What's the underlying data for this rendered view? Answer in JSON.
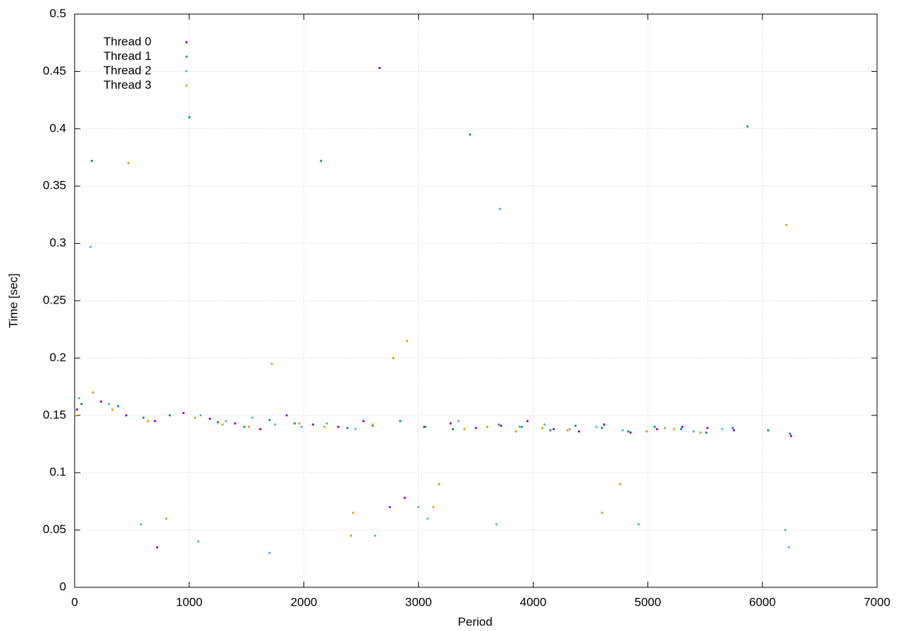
{
  "chart_data": {
    "type": "scatter",
    "x_label": "Period",
    "y_label": "Time [sec]",
    "xlim": [
      0,
      7000
    ],
    "xticks": [
      0,
      1000,
      2000,
      3000,
      4000,
      5000,
      6000,
      7000
    ],
    "ylim": [
      0,
      0.5
    ],
    "yticks": [
      0,
      0.05,
      0.1,
      0.15,
      0.2,
      0.25,
      0.3,
      0.35,
      0.4,
      0.45,
      0.5
    ],
    "grid": true,
    "legend": "top-left",
    "series": [
      {
        "name": "Thread 0",
        "color": "#9400d3",
        "x": [
          20,
          230,
          450,
          700,
          720,
          950,
          1180,
          1400,
          1620,
          1850,
          2080,
          2300,
          2520,
          2660,
          2750,
          2880,
          3050,
          3280,
          3500,
          3720,
          3950,
          4180,
          4400,
          4620,
          4850,
          5080,
          5300,
          5520,
          5750,
          6250
        ],
        "values": [
          0.155,
          0.162,
          0.15,
          0.145,
          0.035,
          0.152,
          0.147,
          0.143,
          0.138,
          0.15,
          0.142,
          0.14,
          0.145,
          0.453,
          0.07,
          0.078,
          0.14,
          0.143,
          0.139,
          0.141,
          0.145,
          0.138,
          0.136,
          0.142,
          0.135,
          0.138,
          0.14,
          0.139,
          0.137,
          0.132
        ]
      },
      {
        "name": "Thread 1",
        "color": "#009e73",
        "x": [
          60,
          150,
          380,
          600,
          830,
          1000,
          1250,
          1480,
          1700,
          1920,
          2150,
          2380,
          2600,
          2840,
          3060,
          3300,
          3450,
          3700,
          3900,
          4150,
          4370,
          4600,
          4830,
          5060,
          5290,
          5510,
          5740,
          5870,
          6050,
          6240
        ],
        "values": [
          0.16,
          0.372,
          0.158,
          0.148,
          0.15,
          0.41,
          0.144,
          0.14,
          0.146,
          0.143,
          0.372,
          0.139,
          0.141,
          0.145,
          0.14,
          0.138,
          0.395,
          0.142,
          0.14,
          0.137,
          0.141,
          0.139,
          0.136,
          0.14,
          0.138,
          0.135,
          0.139,
          0.402,
          0.137,
          0.134
        ]
      },
      {
        "name": "Thread 2",
        "color": "#56b4e9",
        "x": [
          40,
          140,
          300,
          580,
          1080,
          1100,
          1320,
          1550,
          1700,
          1750,
          1980,
          2200,
          2450,
          2620,
          3000,
          3080,
          3350,
          3680,
          3710,
          3880,
          4100,
          4320,
          4550,
          4780,
          4920,
          5150,
          5400,
          5650,
          6200,
          6230
        ],
        "values": [
          0.165,
          0.297,
          0.16,
          0.055,
          0.04,
          0.15,
          0.145,
          0.148,
          0.03,
          0.142,
          0.14,
          0.143,
          0.138,
          0.045,
          0.07,
          0.06,
          0.145,
          0.055,
          0.33,
          0.14,
          0.142,
          0.138,
          0.14,
          0.137,
          0.055,
          0.139,
          0.136,
          0.138,
          0.05,
          0.035
        ]
      },
      {
        "name": "Thread 3",
        "color": "#e69f00",
        "x": [
          10,
          160,
          330,
          470,
          640,
          800,
          1050,
          1290,
          1520,
          1720,
          1960,
          2180,
          2410,
          2430,
          2600,
          2780,
          2900,
          3130,
          3180,
          3400,
          3600,
          3850,
          4080,
          4300,
          4600,
          4760,
          4990,
          5230,
          5460,
          6210
        ],
        "values": [
          0.15,
          0.17,
          0.155,
          0.37,
          0.145,
          0.06,
          0.148,
          0.142,
          0.14,
          0.195,
          0.143,
          0.14,
          0.045,
          0.065,
          0.142,
          0.2,
          0.215,
          0.07,
          0.09,
          0.138,
          0.14,
          0.136,
          0.139,
          0.137,
          0.065,
          0.09,
          0.136,
          0.138,
          0.135,
          0.316
        ]
      }
    ]
  }
}
